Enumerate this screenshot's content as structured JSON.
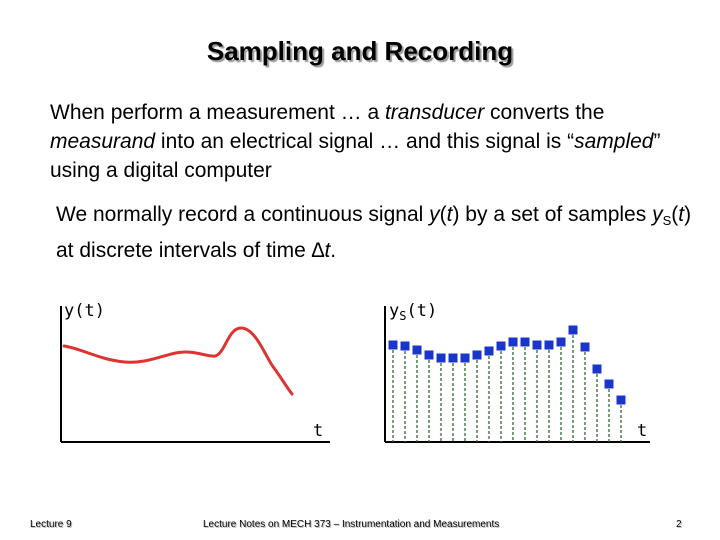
{
  "slide": {
    "title": "Sampling and Recording",
    "para1": {
      "t1": "When perform a measurement … a ",
      "t2": "transducer",
      "t3": " converts the ",
      "t4": "measurand",
      "t5": " into an electrical signal … and this signal is “",
      "t6": "sampled",
      "t7": "” using a digital computer"
    },
    "para2": {
      "t1": "We normally record a continuous signal ",
      "t2": "y",
      "t3": "(",
      "t4": "t",
      "t5": ") by a set of samples ",
      "t6": "y",
      "t7": "S",
      "t8": "(",
      "t9": "t",
      "t10": ") at discrete intervals of time ",
      "t11": "∆t",
      "t12": "."
    }
  },
  "left_graph": {
    "y_label": "y(t)",
    "x_label": "t",
    "curve_color": "#dd3333"
  },
  "right_graph": {
    "y_label_base": "y",
    "y_label_sub": "S",
    "y_label_rest": "(t)",
    "x_label": "t",
    "marker_color": "#1a35cc",
    "stem_color": "#2f6b2f"
  },
  "footer": {
    "left": "Lecture 9",
    "center": "Lecture Notes on MECH 373 – Instrumentation and Measurements",
    "right": "2"
  }
}
